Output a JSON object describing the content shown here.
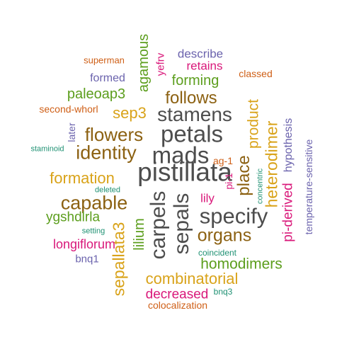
{
  "colors": {
    "dark_gray": "#4d4d4d",
    "brown": "#8c6112",
    "gold": "#d9a31a",
    "green": "#5c9e1d",
    "magenta": "#d9187a",
    "purple": "#6b63ad",
    "orange": "#cf5f16",
    "teal": "#1f9173"
  },
  "words": {
    "pistillata": "pistillata",
    "mads": "mads",
    "petals": "petals",
    "stamens": "stamens",
    "specify": "specify",
    "sepals": "sepals",
    "carpels": "carpels",
    "identity": "identity",
    "flowers": "flowers",
    "capable": "capable",
    "organs": "organs",
    "place": "place",
    "follows": "follows",
    "product": "product",
    "heterodimer": "heterodimer",
    "sep3": "sep3",
    "formation": "formation",
    "combinatorial": "combinatorial",
    "homodimers": "homodimers",
    "sepallata3": "sepallata3",
    "forming": "forming",
    "agamous": "agamous",
    "paleoap3": "paleoap3",
    "pi_derived": "pi-derived",
    "decreased": "decreased",
    "lilium": "lilium",
    "ygshdlrla": "ygshdlrla",
    "longiflorum": "longiflorum",
    "retains": "retains",
    "describe": "describe",
    "formed": "formed",
    "lily": "lily",
    "hypothesis": "hypothesis",
    "yefrv": "yefrv",
    "second_whorl": "second-whorl",
    "temperature_sensitive": "temperature-sensitive",
    "bnq1": "bnq1",
    "superman": "superman",
    "classed": "classed",
    "ag_1": "ag-1",
    "pi_1": "pi-1",
    "colocalization": "colocalization",
    "later": "later",
    "coincident": "coincident",
    "bnq3": "bnq3",
    "concentric": "concentric",
    "staminoid": "staminoid",
    "deleted": "deleted",
    "setting": "setting"
  }
}
